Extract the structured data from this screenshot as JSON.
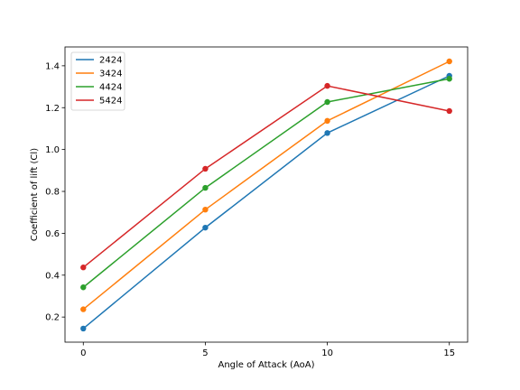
{
  "chart_data": {
    "type": "line",
    "title": "",
    "xlabel": "Angle of Attack (AoA)",
    "ylabel": "Coefficient of lift (Cl)",
    "x": [
      0,
      5,
      10,
      15
    ],
    "xticks": [
      "0",
      "5",
      "10",
      "15"
    ],
    "yticks": [
      "0.2",
      "0.4",
      "0.6",
      "0.8",
      "1.0",
      "1.2",
      "1.4"
    ],
    "xlim": [
      -0.75,
      15.75
    ],
    "ylim": [
      0.08,
      1.49
    ],
    "grid": false,
    "legend_position": "top-left",
    "series": [
      {
        "name": "2424",
        "color": "#1f77b4",
        "values": [
          0.145,
          0.627,
          1.079,
          1.352
        ]
      },
      {
        "name": "3424",
        "color": "#ff7f0e",
        "values": [
          0.237,
          0.713,
          1.137,
          1.421
        ]
      },
      {
        "name": "4424",
        "color": "#2ca02c",
        "values": [
          0.342,
          0.817,
          1.227,
          1.338
        ]
      },
      {
        "name": "5424",
        "color": "#d62728",
        "values": [
          0.437,
          0.908,
          1.304,
          1.184
        ]
      }
    ]
  }
}
